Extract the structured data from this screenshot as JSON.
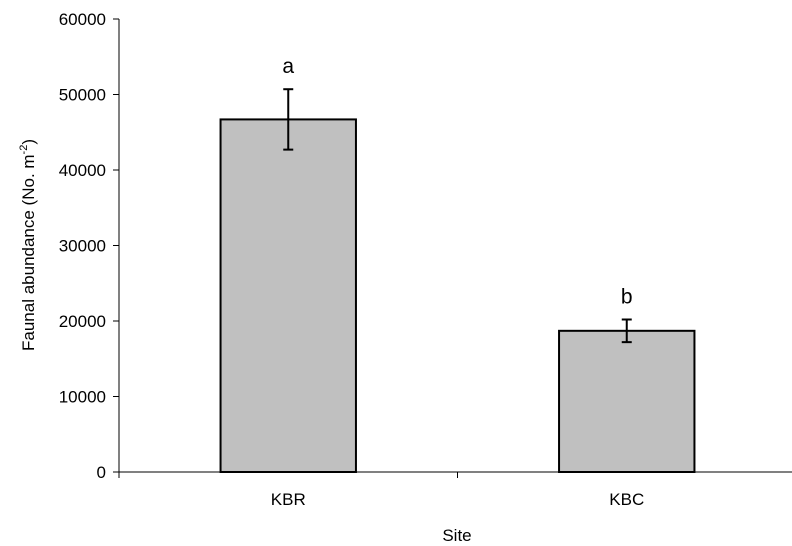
{
  "chart_data": {
    "type": "bar",
    "title": "",
    "xlabel": "Site",
    "ylabel_main": "Faunal abundance (No. m",
    "ylabel_sup": "-2",
    "ylabel_tail": ")",
    "categories": [
      "KBR",
      "KBC"
    ],
    "values": [
      46700,
      18700
    ],
    "error": [
      4000,
      1500
    ],
    "sig_letters": [
      "a",
      "b"
    ],
    "ylim": [
      0,
      60000
    ],
    "yticks": [
      0,
      10000,
      20000,
      30000,
      40000,
      50000,
      60000
    ],
    "ytick_labels": [
      "0",
      "10000",
      "20000",
      "30000",
      "40000",
      "50000",
      "60000"
    ],
    "grid": false,
    "legend": "none",
    "colors": {
      "bar_fill": "#c0c0c0",
      "bar_stroke": "#000000",
      "axis": "#000000"
    }
  }
}
